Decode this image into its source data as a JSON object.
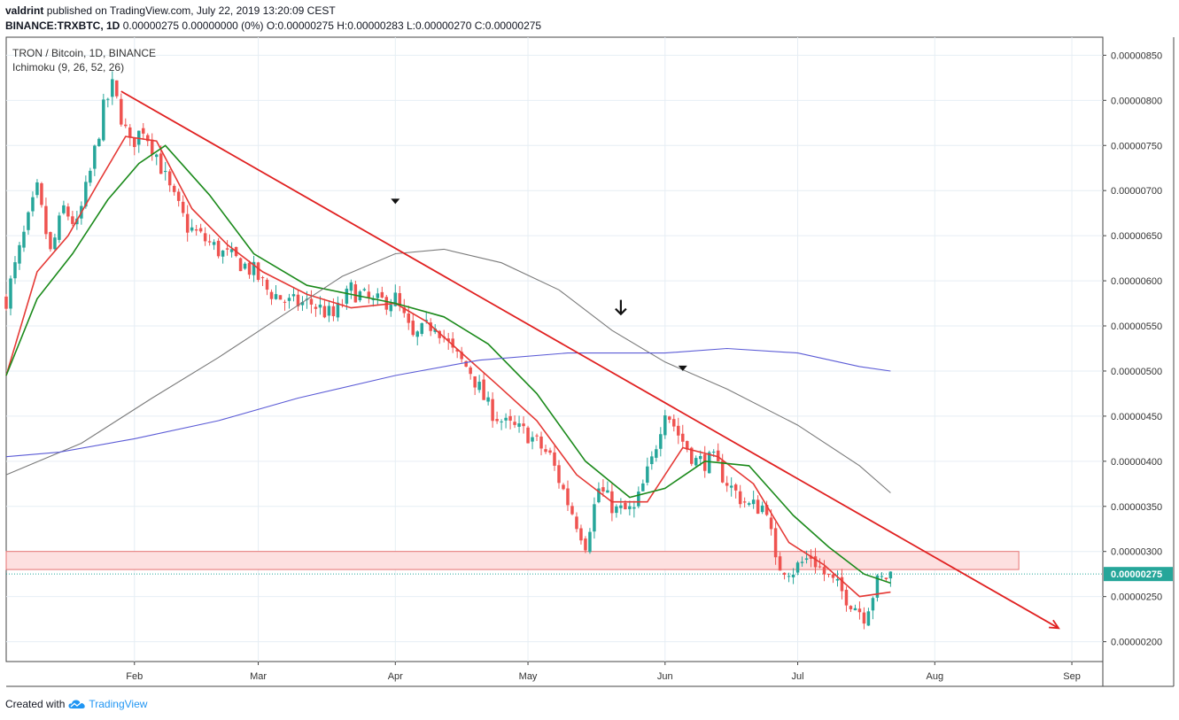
{
  "header": {
    "author": "valdrint",
    "published_text": "published on TradingView.com, July 22, 2019 13:20:09 CEST",
    "symbol": "BINANCE:TRXBTC, 1D",
    "ohlc_text": "0.00000275 0.00000000 (0%) O:0.00000275 H:0.00000283 L:0.00000270 C:0.00000275"
  },
  "legend": {
    "pair_line": "TRON / Bitcoin, 1D, BINANCE",
    "indicator_line": "Ichimoku (9, 26, 52, 26)"
  },
  "footer": {
    "created_with": "Created with",
    "brand": "TradingView"
  },
  "colors": {
    "up": "#26a69a",
    "down": "#ef5350",
    "ema_fast": "#e53935",
    "ema_slow": "#1b8a1b",
    "ma_gray": "#7a7a7a",
    "ma_blue": "#5b5bd6",
    "trendline": "#e02020",
    "support_fill": "#fde0e0",
    "support_stroke": "#e57373",
    "price_label_bg": "#26a69a",
    "grid": "#e6eef4"
  },
  "chart_data": {
    "type": "candlestick",
    "x_axis": {
      "start_date": "2019-01-03",
      "end_date": "2019-09-08",
      "tick_labels": [
        {
          "date": "2019-02-01",
          "label": "Feb"
        },
        {
          "date": "2019-03-01",
          "label": "Mar"
        },
        {
          "date": "2019-04-01",
          "label": "Apr"
        },
        {
          "date": "2019-05-01",
          "label": "May"
        },
        {
          "date": "2019-06-01",
          "label": "Jun"
        },
        {
          "date": "2019-07-01",
          "label": "Jul"
        },
        {
          "date": "2019-08-01",
          "label": "Aug"
        },
        {
          "date": "2019-09-01",
          "label": "Sep"
        }
      ]
    },
    "y_axis": {
      "range": [
        1.78e-06,
        8.7e-06
      ],
      "ticks": [
        2e-06,
        2.5e-06,
        3e-06,
        3.5e-06,
        4e-06,
        4.5e-06,
        5e-06,
        5.5e-06,
        6e-06,
        6.5e-06,
        7e-06,
        7.5e-06,
        8e-06,
        8.5e-06
      ],
      "tick_labels": [
        "0.00000200",
        "0.00000250",
        "0.00000300",
        "0.00000350",
        "0.00000400",
        "0.00000450",
        "0.00000500",
        "0.00000550",
        "0.00000600",
        "0.00000650",
        "0.00000700",
        "0.00000750",
        "0.00000800",
        "0.00000850"
      ]
    },
    "last_price": {
      "value": 2.75e-06,
      "label": "0.00000275"
    },
    "price_path": [
      [
        "2019-01-03",
        5.8
      ],
      [
        "2019-01-07",
        6.5
      ],
      [
        "2019-01-10",
        7.0
      ],
      [
        "2019-01-13",
        6.3
      ],
      [
        "2019-01-16",
        6.8
      ],
      [
        "2019-01-19",
        6.6
      ],
      [
        "2019-01-22",
        7.2
      ],
      [
        "2019-01-25",
        7.9
      ],
      [
        "2019-01-27",
        8.15
      ],
      [
        "2019-01-31",
        7.5
      ],
      [
        "2019-02-03",
        7.7
      ],
      [
        "2019-02-06",
        7.4
      ],
      [
        "2019-02-09",
        7.0
      ],
      [
        "2019-02-13",
        6.6
      ],
      [
        "2019-02-17",
        6.45
      ],
      [
        "2019-02-21",
        6.3
      ],
      [
        "2019-02-25",
        6.2
      ],
      [
        "2019-02-28",
        6.1
      ],
      [
        "2019-03-03",
        5.9
      ],
      [
        "2019-03-08",
        5.75
      ],
      [
        "2019-03-13",
        5.75
      ],
      [
        "2019-03-18",
        5.6
      ],
      [
        "2019-03-22",
        5.9
      ],
      [
        "2019-03-27",
        5.75
      ],
      [
        "2019-04-01",
        5.8
      ],
      [
        "2019-04-05",
        5.35
      ],
      [
        "2019-04-10",
        5.55
      ],
      [
        "2019-04-14",
        5.2
      ],
      [
        "2019-04-18",
        5.0
      ],
      [
        "2019-04-22",
        4.6
      ],
      [
        "2019-04-26",
        4.4
      ],
      [
        "2019-05-01",
        4.3
      ],
      [
        "2019-05-06",
        4.05
      ],
      [
        "2019-05-10",
        3.55
      ],
      [
        "2019-05-14",
        3.1
      ],
      [
        "2019-05-17",
        3.7
      ],
      [
        "2019-05-21",
        3.45
      ],
      [
        "2019-05-25",
        3.45
      ],
      [
        "2019-05-29",
        4.0
      ],
      [
        "2019-06-01",
        4.6
      ],
      [
        "2019-06-04",
        4.3
      ],
      [
        "2019-06-08",
        4.0
      ],
      [
        "2019-06-12",
        4.0
      ],
      [
        "2019-06-16",
        3.7
      ],
      [
        "2019-06-20",
        3.5
      ],
      [
        "2019-06-24",
        3.5
      ],
      [
        "2019-06-26",
        2.85
      ],
      [
        "2019-06-30",
        2.8
      ],
      [
        "2019-07-04",
        2.95
      ],
      [
        "2019-07-07",
        2.75
      ],
      [
        "2019-07-10",
        2.6
      ],
      [
        "2019-07-13",
        2.45
      ],
      [
        "2019-07-16",
        2.3
      ],
      [
        "2019-07-19",
        2.65
      ],
      [
        "2019-07-22",
        2.75
      ]
    ],
    "series": [
      {
        "color": "#e53935",
        "points": [
          [
            "2019-01-03",
            4.95
          ],
          [
            "2019-01-10",
            6.1
          ],
          [
            "2019-01-17",
            6.5
          ],
          [
            "2019-01-24",
            7.1
          ],
          [
            "2019-01-30",
            7.6
          ],
          [
            "2019-02-06",
            7.55
          ],
          [
            "2019-02-14",
            6.8
          ],
          [
            "2019-02-22",
            6.4
          ],
          [
            "2019-03-02",
            6.1
          ],
          [
            "2019-03-12",
            5.85
          ],
          [
            "2019-03-22",
            5.7
          ],
          [
            "2019-04-01",
            5.75
          ],
          [
            "2019-04-08",
            5.55
          ],
          [
            "2019-04-16",
            5.2
          ],
          [
            "2019-04-24",
            4.85
          ],
          [
            "2019-05-03",
            4.45
          ],
          [
            "2019-05-12",
            3.85
          ],
          [
            "2019-05-20",
            3.55
          ],
          [
            "2019-05-28",
            3.55
          ],
          [
            "2019-06-05",
            4.15
          ],
          [
            "2019-06-13",
            4.05
          ],
          [
            "2019-06-21",
            3.75
          ],
          [
            "2019-06-29",
            3.1
          ],
          [
            "2019-07-07",
            2.85
          ],
          [
            "2019-07-15",
            2.5
          ],
          [
            "2019-07-22",
            2.55
          ]
        ]
      },
      {
        "color": "#1b8a1b",
        "points": [
          [
            "2019-01-03",
            4.95
          ],
          [
            "2019-01-10",
            5.8
          ],
          [
            "2019-01-18",
            6.3
          ],
          [
            "2019-01-26",
            6.9
          ],
          [
            "2019-02-02",
            7.3
          ],
          [
            "2019-02-08",
            7.5
          ],
          [
            "2019-02-18",
            6.95
          ],
          [
            "2019-02-28",
            6.3
          ],
          [
            "2019-03-12",
            5.95
          ],
          [
            "2019-03-22",
            5.85
          ],
          [
            "2019-04-01",
            5.75
          ],
          [
            "2019-04-12",
            5.6
          ],
          [
            "2019-04-22",
            5.3
          ],
          [
            "2019-05-03",
            4.75
          ],
          [
            "2019-05-14",
            4.0
          ],
          [
            "2019-05-24",
            3.6
          ],
          [
            "2019-06-01",
            3.7
          ],
          [
            "2019-06-10",
            4.0
          ],
          [
            "2019-06-20",
            3.95
          ],
          [
            "2019-06-30",
            3.4
          ],
          [
            "2019-07-08",
            3.05
          ],
          [
            "2019-07-16",
            2.75
          ],
          [
            "2019-07-22",
            2.65
          ]
        ]
      },
      {
        "color": "#7a7a7a",
        "points": [
          [
            "2019-01-03",
            3.85
          ],
          [
            "2019-01-20",
            4.2
          ],
          [
            "2019-02-05",
            4.7
          ],
          [
            "2019-02-20",
            5.15
          ],
          [
            "2019-03-06",
            5.6
          ],
          [
            "2019-03-20",
            6.05
          ],
          [
            "2019-04-01",
            6.3
          ],
          [
            "2019-04-12",
            6.35
          ],
          [
            "2019-04-25",
            6.2
          ],
          [
            "2019-05-08",
            5.9
          ],
          [
            "2019-05-20",
            5.45
          ],
          [
            "2019-06-01",
            5.1
          ],
          [
            "2019-06-15",
            4.8
          ],
          [
            "2019-07-01",
            4.4
          ],
          [
            "2019-07-15",
            3.95
          ],
          [
            "2019-07-22",
            3.65
          ]
        ]
      },
      {
        "color": "#5b5bd6",
        "points": [
          [
            "2019-01-03",
            4.05
          ],
          [
            "2019-01-15",
            4.1
          ],
          [
            "2019-02-01",
            4.25
          ],
          [
            "2019-02-20",
            4.45
          ],
          [
            "2019-03-10",
            4.7
          ],
          [
            "2019-04-01",
            4.95
          ],
          [
            "2019-04-20",
            5.12
          ],
          [
            "2019-05-10",
            5.2
          ],
          [
            "2019-06-01",
            5.2
          ],
          [
            "2019-06-15",
            5.25
          ],
          [
            "2019-07-01",
            5.2
          ],
          [
            "2019-07-15",
            5.05
          ],
          [
            "2019-07-22",
            5.0
          ]
        ]
      }
    ],
    "trendline": {
      "from": [
        "2019-01-29",
        8.1
      ],
      "to": [
        "2019-08-29",
        2.15
      ]
    },
    "support_zone": {
      "from_date": "2019-01-03",
      "to_date": "2019-08-20",
      "low": 2.8e-06,
      "high": 3e-06
    },
    "markers": [
      {
        "kind": "triangle-down",
        "date": "2019-04-01",
        "value": 6.88e-06
      },
      {
        "kind": "arrow-down",
        "date": "2019-05-22",
        "value": 5.7e-06
      },
      {
        "kind": "triangle-down",
        "date": "2019-06-05",
        "value": 5.03e-06
      }
    ],
    "grid": true
  }
}
